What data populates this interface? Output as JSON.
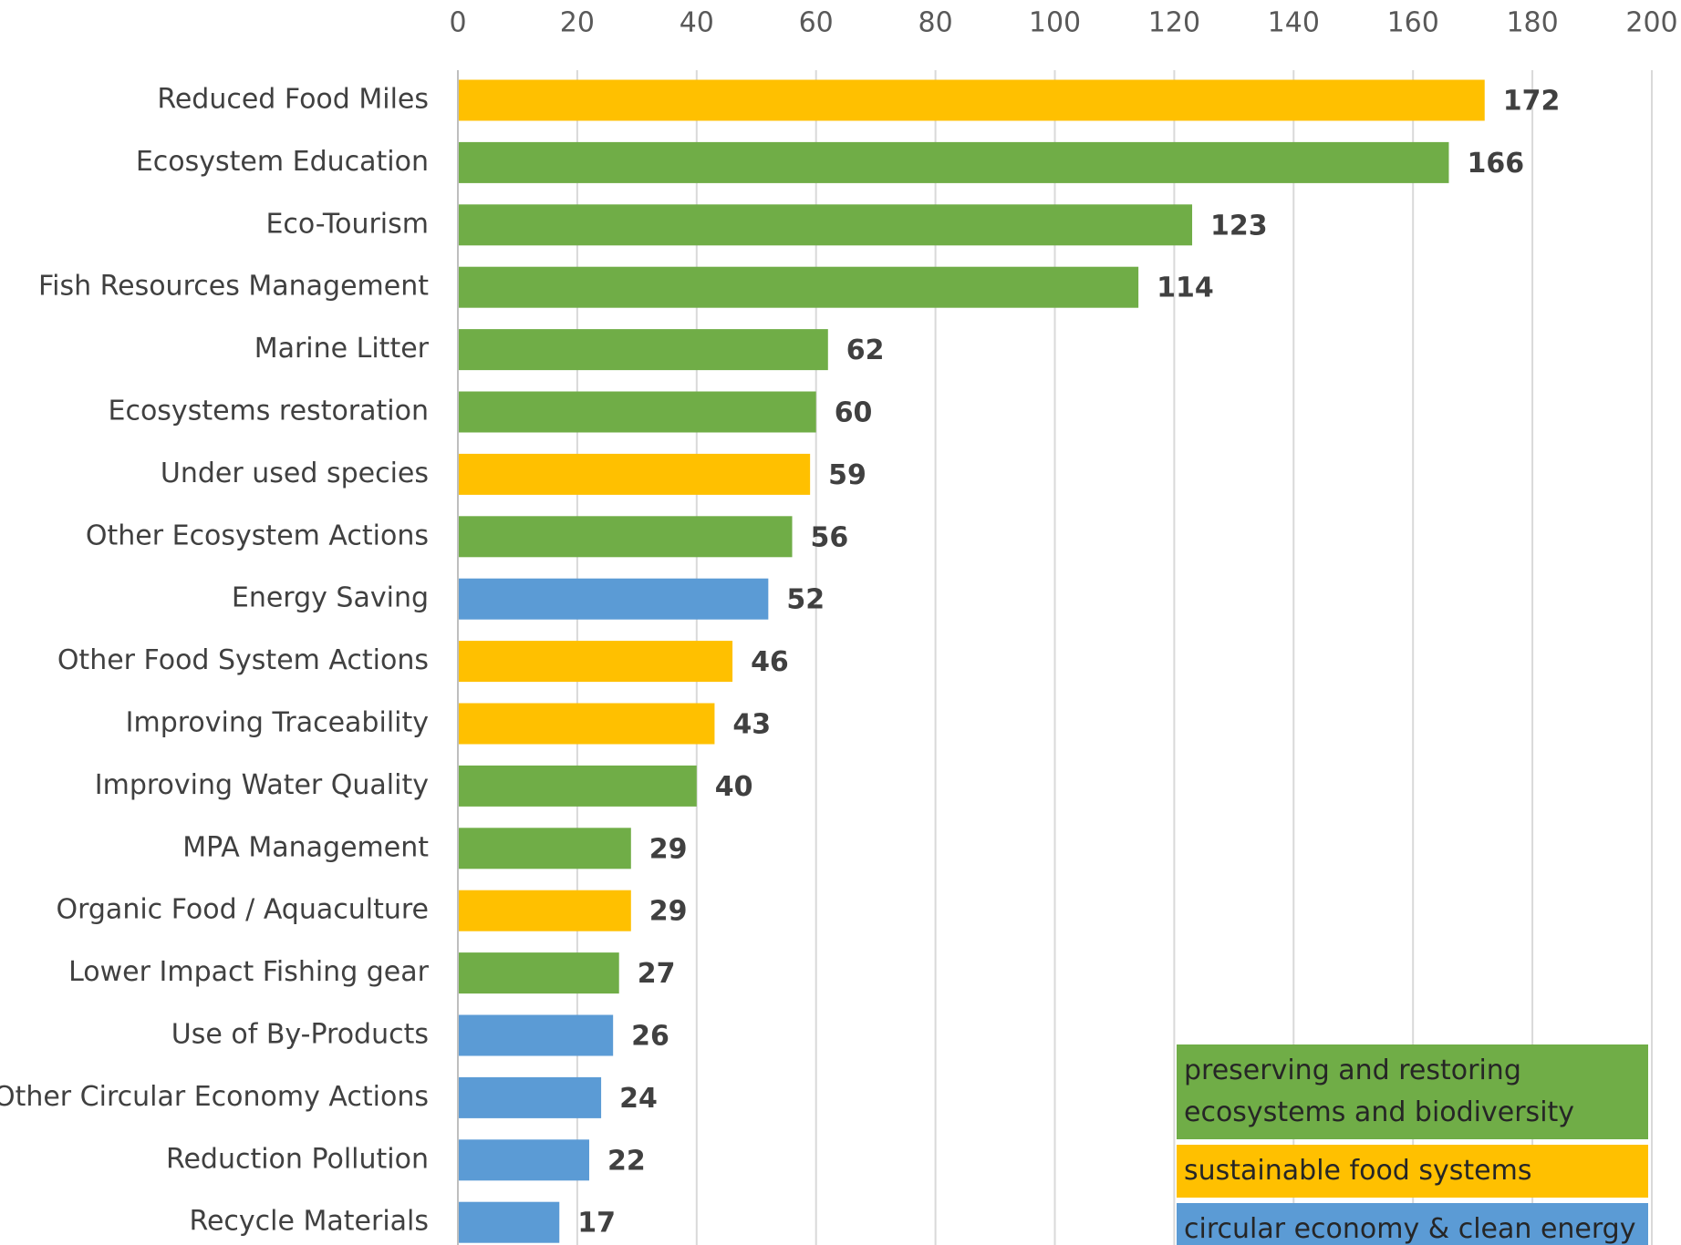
{
  "chart_data": {
    "type": "barh",
    "categories": [
      "Reduced Food Miles",
      "Ecosystem Education",
      "Eco-Tourism",
      "Fish Resources Management",
      "Marine Litter",
      "Ecosystems restoration",
      "Under used species",
      "Other Ecosystem Actions",
      "Energy Saving",
      "Other Food System Actions",
      "Improving Traceability",
      "Improving Water Quality",
      "MPA Management",
      "Organic Food / Aquaculture",
      "Lower Impact Fishing gear",
      "Use of By-Products",
      "Other Circular Economy Actions",
      "Reduction Pollution",
      "Recycle Materials"
    ],
    "values": [
      172,
      166,
      123,
      114,
      62,
      60,
      59,
      56,
      52,
      46,
      43,
      40,
      29,
      29,
      27,
      26,
      24,
      22,
      17
    ],
    "colors": [
      "#ffc000",
      "#70ad47",
      "#70ad47",
      "#70ad47",
      "#70ad47",
      "#70ad47",
      "#ffc000",
      "#70ad47",
      "#5b9bd5",
      "#ffc000",
      "#ffc000",
      "#70ad47",
      "#70ad47",
      "#ffc000",
      "#70ad47",
      "#5b9bd5",
      "#5b9bd5",
      "#5b9bd5",
      "#5b9bd5"
    ],
    "xlim": [
      0,
      200
    ],
    "xticks": [
      0,
      20,
      40,
      60,
      80,
      100,
      120,
      140,
      160,
      180,
      200
    ],
    "grid": true,
    "legend": [
      {
        "name": "preserving and restoring ecosystems and biodiversity",
        "color": "#70ad47"
      },
      {
        "name": "sustainable food systems",
        "color": "#ffc000"
      },
      {
        "name": "circular economy & clean energy",
        "color": "#5b9bd5"
      }
    ],
    "legend_position": "lower right"
  }
}
